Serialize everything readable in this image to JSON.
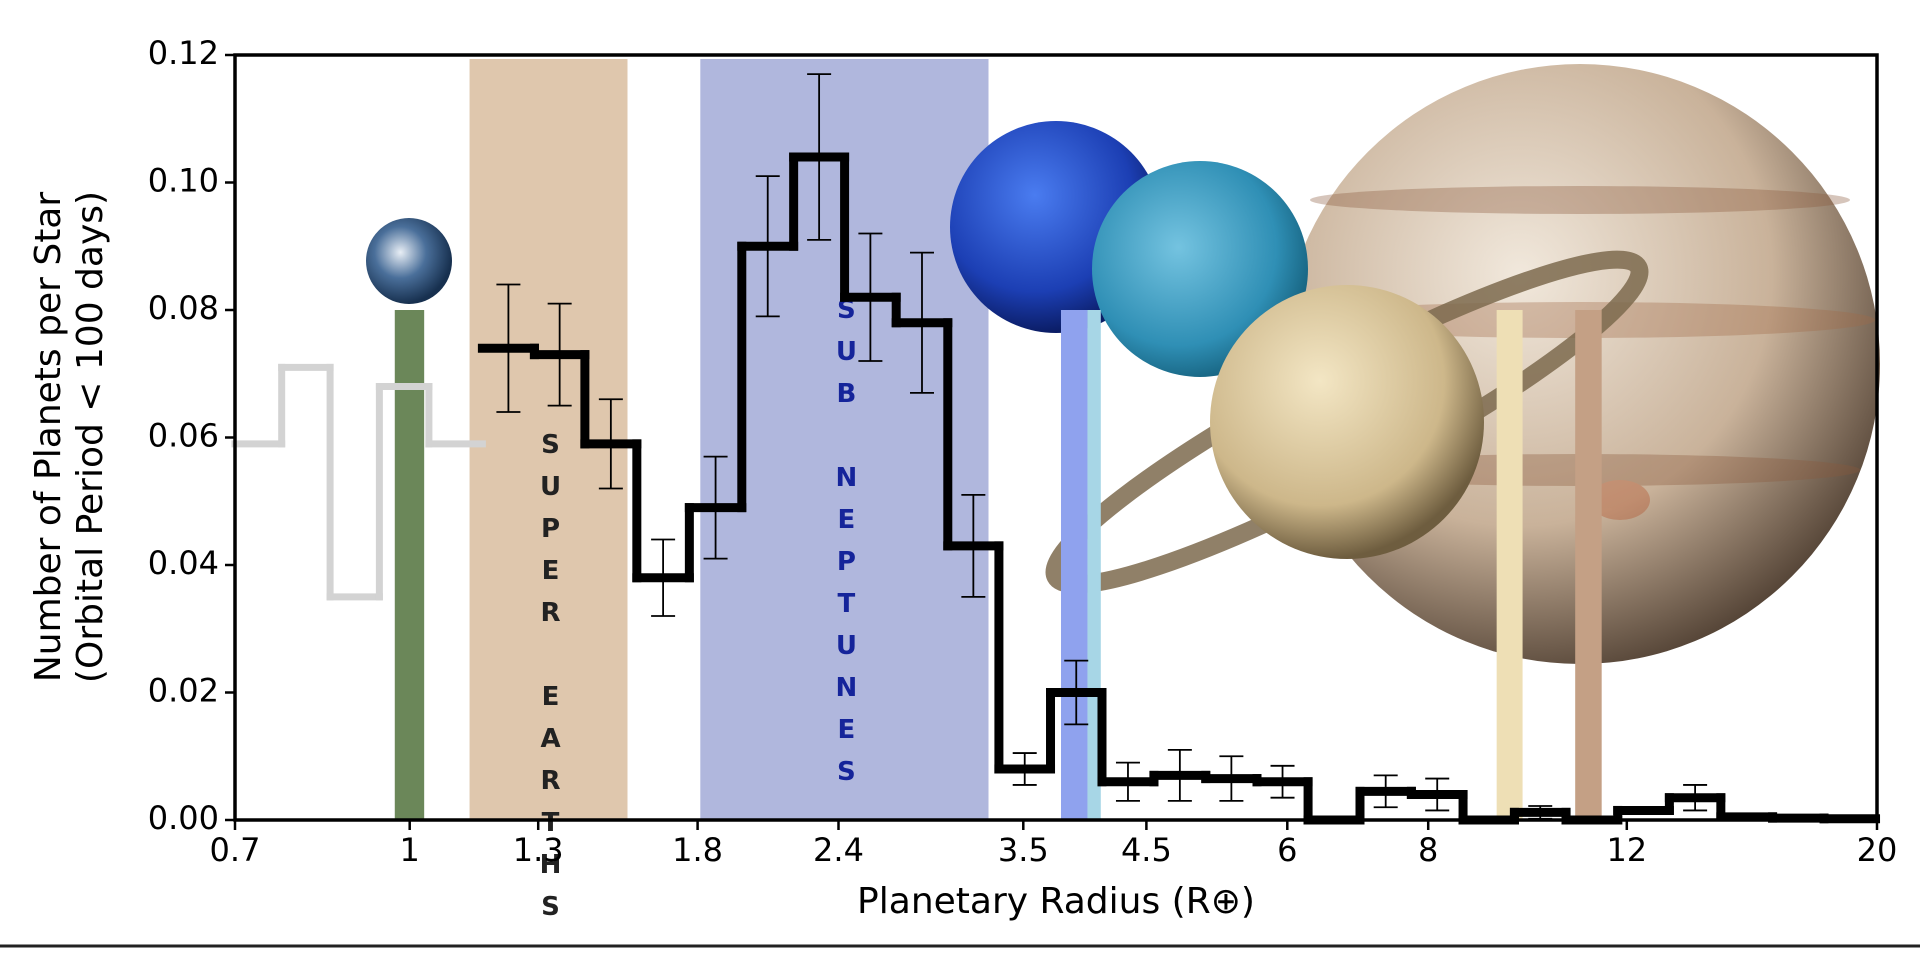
{
  "chart_data": {
    "type": "step",
    "xlabel": "Planetary Radius (R⊕)",
    "ylabel": [
      "Number of Planets per Star",
      "(Orbital Period < 100 days)"
    ],
    "xscale": "log",
    "xlim": [
      0.7,
      20
    ],
    "xticks": [
      0.7,
      1,
      1.3,
      1.8,
      2.4,
      3.5,
      4.5,
      6,
      8,
      12,
      20
    ],
    "ylim": [
      0,
      0.12
    ],
    "yticks": [
      {
        "value": 0,
        "label": "0.00"
      },
      {
        "value": 0.02,
        "label": "0.02"
      },
      {
        "value": 0.04,
        "label": "0.04"
      },
      {
        "value": 0.06,
        "label": "0.06"
      },
      {
        "value": 0.08,
        "label": "0.08"
      },
      {
        "value": 0.1,
        "label": "0.10"
      },
      {
        "value": 0.12,
        "label": "0.12"
      }
    ],
    "regions": [
      {
        "label": "SUPER EARTHS",
        "range": [
          1.13,
          1.56
        ],
        "color": "#dfc7ad",
        "text_color": "#222222"
      },
      {
        "label": "SUB NEPTUNES",
        "range": [
          1.81,
          3.26
        ],
        "color": "#b0b7dd",
        "text_color": "#15249a"
      }
    ],
    "planet_bars": [
      {
        "x": [
          0.97,
          1.03
        ],
        "height": 0.08,
        "color": "#6b8759"
      },
      {
        "x": [
          3.78,
          3.99
        ],
        "height": 0.08,
        "color": "#8fa2ee"
      },
      {
        "x": [
          3.99,
          4.1
        ],
        "height": 0.08,
        "color": "#a7d6e6"
      },
      {
        "x": [
          9.2,
          9.7
        ],
        "height": 0.08,
        "color": "#eedfb5"
      },
      {
        "x": [
          10.8,
          11.4
        ],
        "height": 0.08,
        "color": "#c4a085"
      }
    ],
    "series": [
      {
        "color": "#d3d3d3",
        "bins": [
          0.7,
          0.77,
          0.85,
          0.94,
          1.04,
          1.16
        ],
        "values": [
          0.059,
          0.071,
          0.035,
          0.068,
          0.059
        ]
      },
      {
        "color": "#000000",
        "bins": [
          1.16,
          1.29,
          1.43,
          1.59,
          1.77,
          1.97,
          2.19,
          2.43,
          2.7,
          3.0,
          3.33,
          3.7,
          4.11,
          4.57,
          5.08,
          5.64,
          6.26,
          6.96,
          7.73,
          8.59,
          9.54,
          10.6,
          11.78,
          13.09,
          14.54,
          16.16,
          17.95,
          19.94
        ],
        "values": [
          0.074,
          0.073,
          0.059,
          0.038,
          0.049,
          0.09,
          0.104,
          0.082,
          0.078,
          0.043,
          0.008,
          0.02,
          0.006,
          0.007,
          0.0065,
          0.006,
          0,
          0.0045,
          0.004,
          0,
          0.0012,
          0,
          0.0015,
          0.0035,
          0.0005,
          0.0003,
          0.0002
        ],
        "errors": [
          0.01,
          0.008,
          0.007,
          0.006,
          0.008,
          0.011,
          0.013,
          0.01,
          0.011,
          0.008,
          0.0025,
          0.005,
          0.003,
          0.004,
          0.0035,
          0.0025,
          null,
          0.0025,
          0.0025,
          null,
          0.001,
          null,
          null,
          0.002,
          null,
          null,
          null
        ]
      }
    ]
  }
}
